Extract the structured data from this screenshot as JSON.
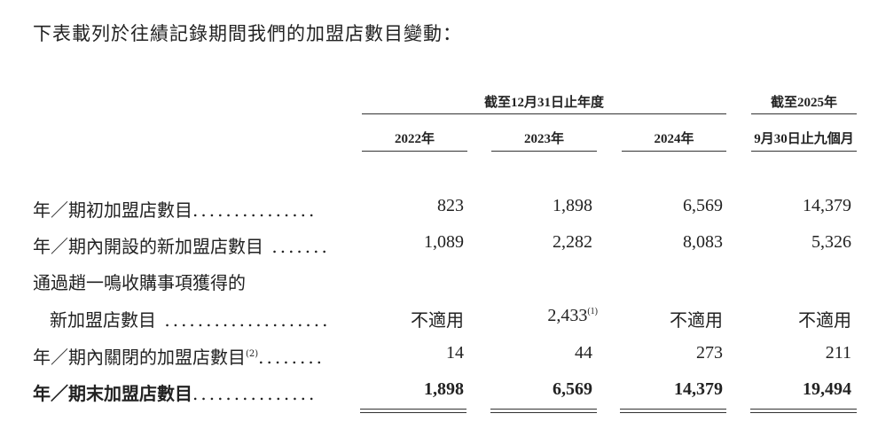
{
  "intro": "下表載列於往績記錄期間我們的加盟店數目變動：",
  "header": {
    "group_years": "截至12月31日止年度",
    "group_period_line1": "截至2025年",
    "columns": [
      "2022年",
      "2023年",
      "2024年",
      "9月30日止九個月"
    ]
  },
  "rows": [
    {
      "label": "年／期初加盟店數目",
      "dots": "...............",
      "values": [
        "823",
        "1,898",
        "6,569",
        "14,379"
      ]
    },
    {
      "label": "年／期內開設的新加盟店數目",
      "dots": " .......",
      "values": [
        "1,089",
        "2,282",
        "8,083",
        "5,326"
      ]
    },
    {
      "label": "通過趙一鳴收購事項獲得的"
    },
    {
      "label": "新加盟店數目",
      "dots": " ....................",
      "values": [
        "不適用",
        "2,433",
        "不適用",
        "不適用"
      ],
      "note_2023": "(1)"
    },
    {
      "label": "年／期內關閉的加盟店數目",
      "note": "(2)",
      "dots": "........",
      "values": [
        "14",
        "44",
        "273",
        "211"
      ]
    },
    {
      "label": "年／期末加盟店數目",
      "dots": "...............",
      "values": [
        "1,898",
        "6,569",
        "14,379",
        "19,494"
      ],
      "bold": true
    }
  ]
}
